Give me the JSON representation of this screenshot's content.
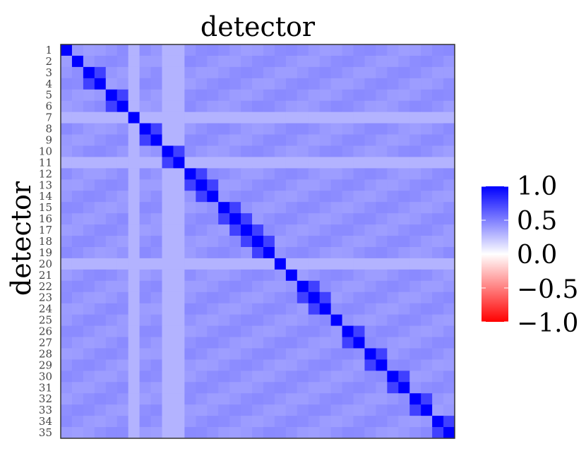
{
  "chart_data": {
    "type": "heatmap",
    "title": "detector",
    "xlabel": "",
    "ylabel": "detector",
    "categories": [
      "1",
      "2",
      "3",
      "4",
      "5",
      "6",
      "7",
      "8",
      "9",
      "10",
      "11",
      "12",
      "13",
      "14",
      "15",
      "16",
      "17",
      "18",
      "19",
      "20",
      "21",
      "22",
      "23",
      "24",
      "25",
      "26",
      "27",
      "28",
      "29",
      "30",
      "31",
      "32",
      "33",
      "34",
      "35"
    ],
    "value_range": [
      -1.0,
      1.0
    ],
    "colorbar": {
      "ticks": [
        "1.0",
        "0.5",
        "0.0",
        "−0.5",
        "−1.0"
      ],
      "colors": {
        "max": "#0000ff",
        "mid": "#ffffff",
        "min": "#ff0000"
      }
    },
    "diagonal_value": 1.0,
    "base_offdiagonal_value": 0.42,
    "low_rows": [
      7,
      11,
      20
    ],
    "low_cols": [
      7,
      10,
      11
    ],
    "low_value": 0.3,
    "neighbor_pairs": [
      [
        3,
        4
      ],
      [
        5,
        6
      ],
      [
        8,
        9
      ],
      [
        10,
        11
      ],
      [
        12,
        13
      ],
      [
        13,
        14
      ],
      [
        15,
        16
      ],
      [
        16,
        17
      ],
      [
        17,
        18
      ],
      [
        18,
        19
      ],
      [
        22,
        23
      ],
      [
        23,
        24
      ],
      [
        26,
        27
      ],
      [
        28,
        29
      ],
      [
        30,
        31
      ],
      [
        32,
        33
      ],
      [
        34,
        35
      ]
    ],
    "neighbor_value": 0.75
  }
}
